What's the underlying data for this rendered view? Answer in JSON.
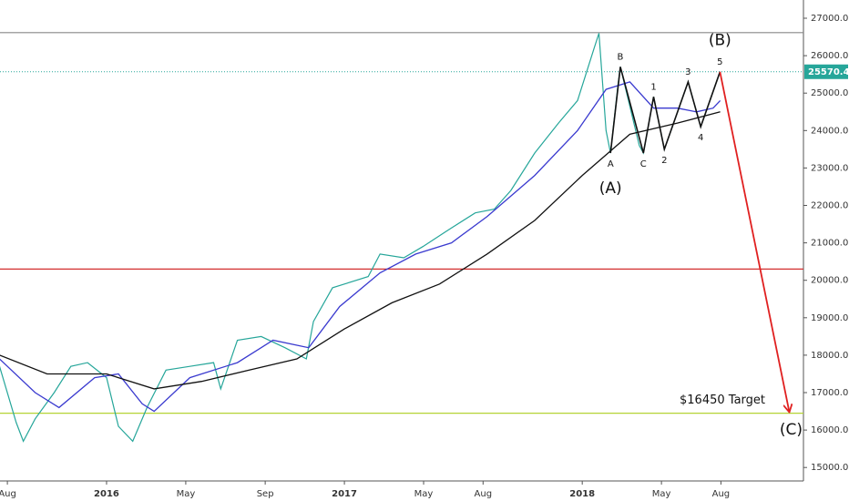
{
  "chart_data": {
    "type": "line",
    "xlim": [
      2015.552,
      2018.93
    ],
    "ylim": [
      14640,
      27487
    ],
    "grid": false,
    "xticks": [
      {
        "value": 2015.583,
        "label": "Aug"
      },
      {
        "value": 2016.0,
        "label": "2016"
      },
      {
        "value": 2016.333,
        "label": "May"
      },
      {
        "value": 2016.667,
        "label": "Sep"
      },
      {
        "value": 2017.0,
        "label": "2017"
      },
      {
        "value": 2017.333,
        "label": "May"
      },
      {
        "value": 2017.583,
        "label": "Aug"
      },
      {
        "value": 2018.0,
        "label": "2018"
      },
      {
        "value": 2018.333,
        "label": "May"
      },
      {
        "value": 2018.583,
        "label": "Aug"
      }
    ],
    "yticks": [
      {
        "value": 15000,
        "label": "15000.0"
      },
      {
        "value": 16000,
        "label": "16000.0"
      },
      {
        "value": 17000,
        "label": "17000.0"
      },
      {
        "value": 18000,
        "label": "18000.0"
      },
      {
        "value": 19000,
        "label": "19000.0"
      },
      {
        "value": 20000,
        "label": "20000.0"
      },
      {
        "value": 21000,
        "label": "21000.0"
      },
      {
        "value": 22000,
        "label": "22000.0"
      },
      {
        "value": 23000,
        "label": "23000.0"
      },
      {
        "value": 24000,
        "label": "24000.0"
      },
      {
        "value": 25000,
        "label": "25000.0"
      },
      {
        "value": 26000,
        "label": "26000.0"
      },
      {
        "value": 27000,
        "label": "27000.0"
      }
    ],
    "series": [
      {
        "color": "#26a69a",
        "x": [
          2015.55,
          2015.62,
          2015.65,
          2015.7,
          2015.78,
          2015.85,
          2015.92,
          2016.0,
          2016.05,
          2016.11,
          2016.17,
          2016.25,
          2016.35,
          2016.45,
          2016.48,
          2016.55,
          2016.65,
          2016.75,
          2016.84,
          2016.87,
          2016.95,
          2017.0,
          2017.1,
          2017.15,
          2017.25,
          2017.33,
          2017.45,
          2017.55,
          2017.63,
          2017.7,
          2017.8,
          2017.9,
          2017.98,
          2018.05,
          2018.07,
          2018.1,
          2018.119,
          2018.15,
          2018.16,
          2018.24,
          2018.257,
          2018.3,
          2018.345,
          2018.445,
          2018.498,
          2018.579
        ],
        "values": [
          17700,
          16200,
          15700,
          16300,
          17000,
          17700,
          17800,
          17400,
          16100,
          15700,
          16600,
          17600,
          17700,
          17800,
          17100,
          18400,
          18500,
          18200,
          17900,
          18900,
          19800,
          19900,
          20100,
          20700,
          20600,
          20900,
          21400,
          21800,
          21900,
          22400,
          23400,
          24200,
          24800,
          26200,
          26600,
          24000,
          23400,
          25200,
          25700,
          23600,
          23400,
          24900,
          23500,
          25300,
          24100,
          25570.4
        ]
      },
      {
        "color": "#3a3acf",
        "x": [
          2015.55,
          2015.7,
          2015.8,
          2015.95,
          2016.05,
          2016.15,
          2016.2,
          2016.35,
          2016.55,
          2016.7,
          2016.85,
          2016.98,
          2017.15,
          2017.3,
          2017.45,
          2017.6,
          2017.8,
          2017.98,
          2018.1,
          2018.2,
          2018.3,
          2018.4,
          2018.48,
          2018.55,
          2018.58
        ],
        "values": [
          17900,
          17000,
          16600,
          17400,
          17500,
          16700,
          16500,
          17400,
          17800,
          18400,
          18200,
          19300,
          20200,
          20700,
          21000,
          21700,
          22800,
          24000,
          25100,
          25300,
          24600,
          24600,
          24500,
          24600,
          24800
        ]
      },
      {
        "color": "#111111",
        "x": [
          2015.55,
          2015.75,
          2016.0,
          2016.2,
          2016.4,
          2016.6,
          2016.8,
          2017.0,
          2017.2,
          2017.4,
          2017.6,
          2017.8,
          2018.0,
          2018.2,
          2018.4,
          2018.58
        ],
        "values": [
          18000,
          17500,
          17500,
          17100,
          17300,
          17600,
          17900,
          18700,
          19400,
          19900,
          20700,
          21600,
          22800,
          23900,
          24200,
          24500
        ]
      }
    ],
    "wave": {
      "color": "#111111",
      "labels": [
        "A",
        "B",
        "C",
        "1",
        "2",
        "3",
        "4",
        "5"
      ],
      "x": [
        2018.119,
        2018.16,
        2018.257,
        2018.3,
        2018.345,
        2018.445,
        2018.498,
        2018.579
      ],
      "values": [
        23400,
        25700,
        23400,
        24900,
        23500,
        25300,
        24100,
        25570.4
      ]
    },
    "hlines": [
      {
        "value": 26616,
        "color": "#888888"
      },
      {
        "value": 20300,
        "color": "#d32f2f"
      },
      {
        "value": 16450,
        "color": "#b5d334",
        "label": "$16450 Target"
      }
    ],
    "last_price": {
      "value": 25570.4,
      "color": "#26a69a"
    },
    "annotations": [
      {
        "text": "(A)",
        "x": 2018.119,
        "y": 22450
      },
      {
        "text": "(B)",
        "x": 2018.579,
        "y": 26400
      },
      {
        "text": "(C)",
        "x": 2018.878,
        "y": 16000
      }
    ],
    "arrow": {
      "color": "#e02020",
      "x": [
        2018.579,
        2018.87
      ],
      "y": [
        25570.4,
        16500
      ]
    }
  }
}
